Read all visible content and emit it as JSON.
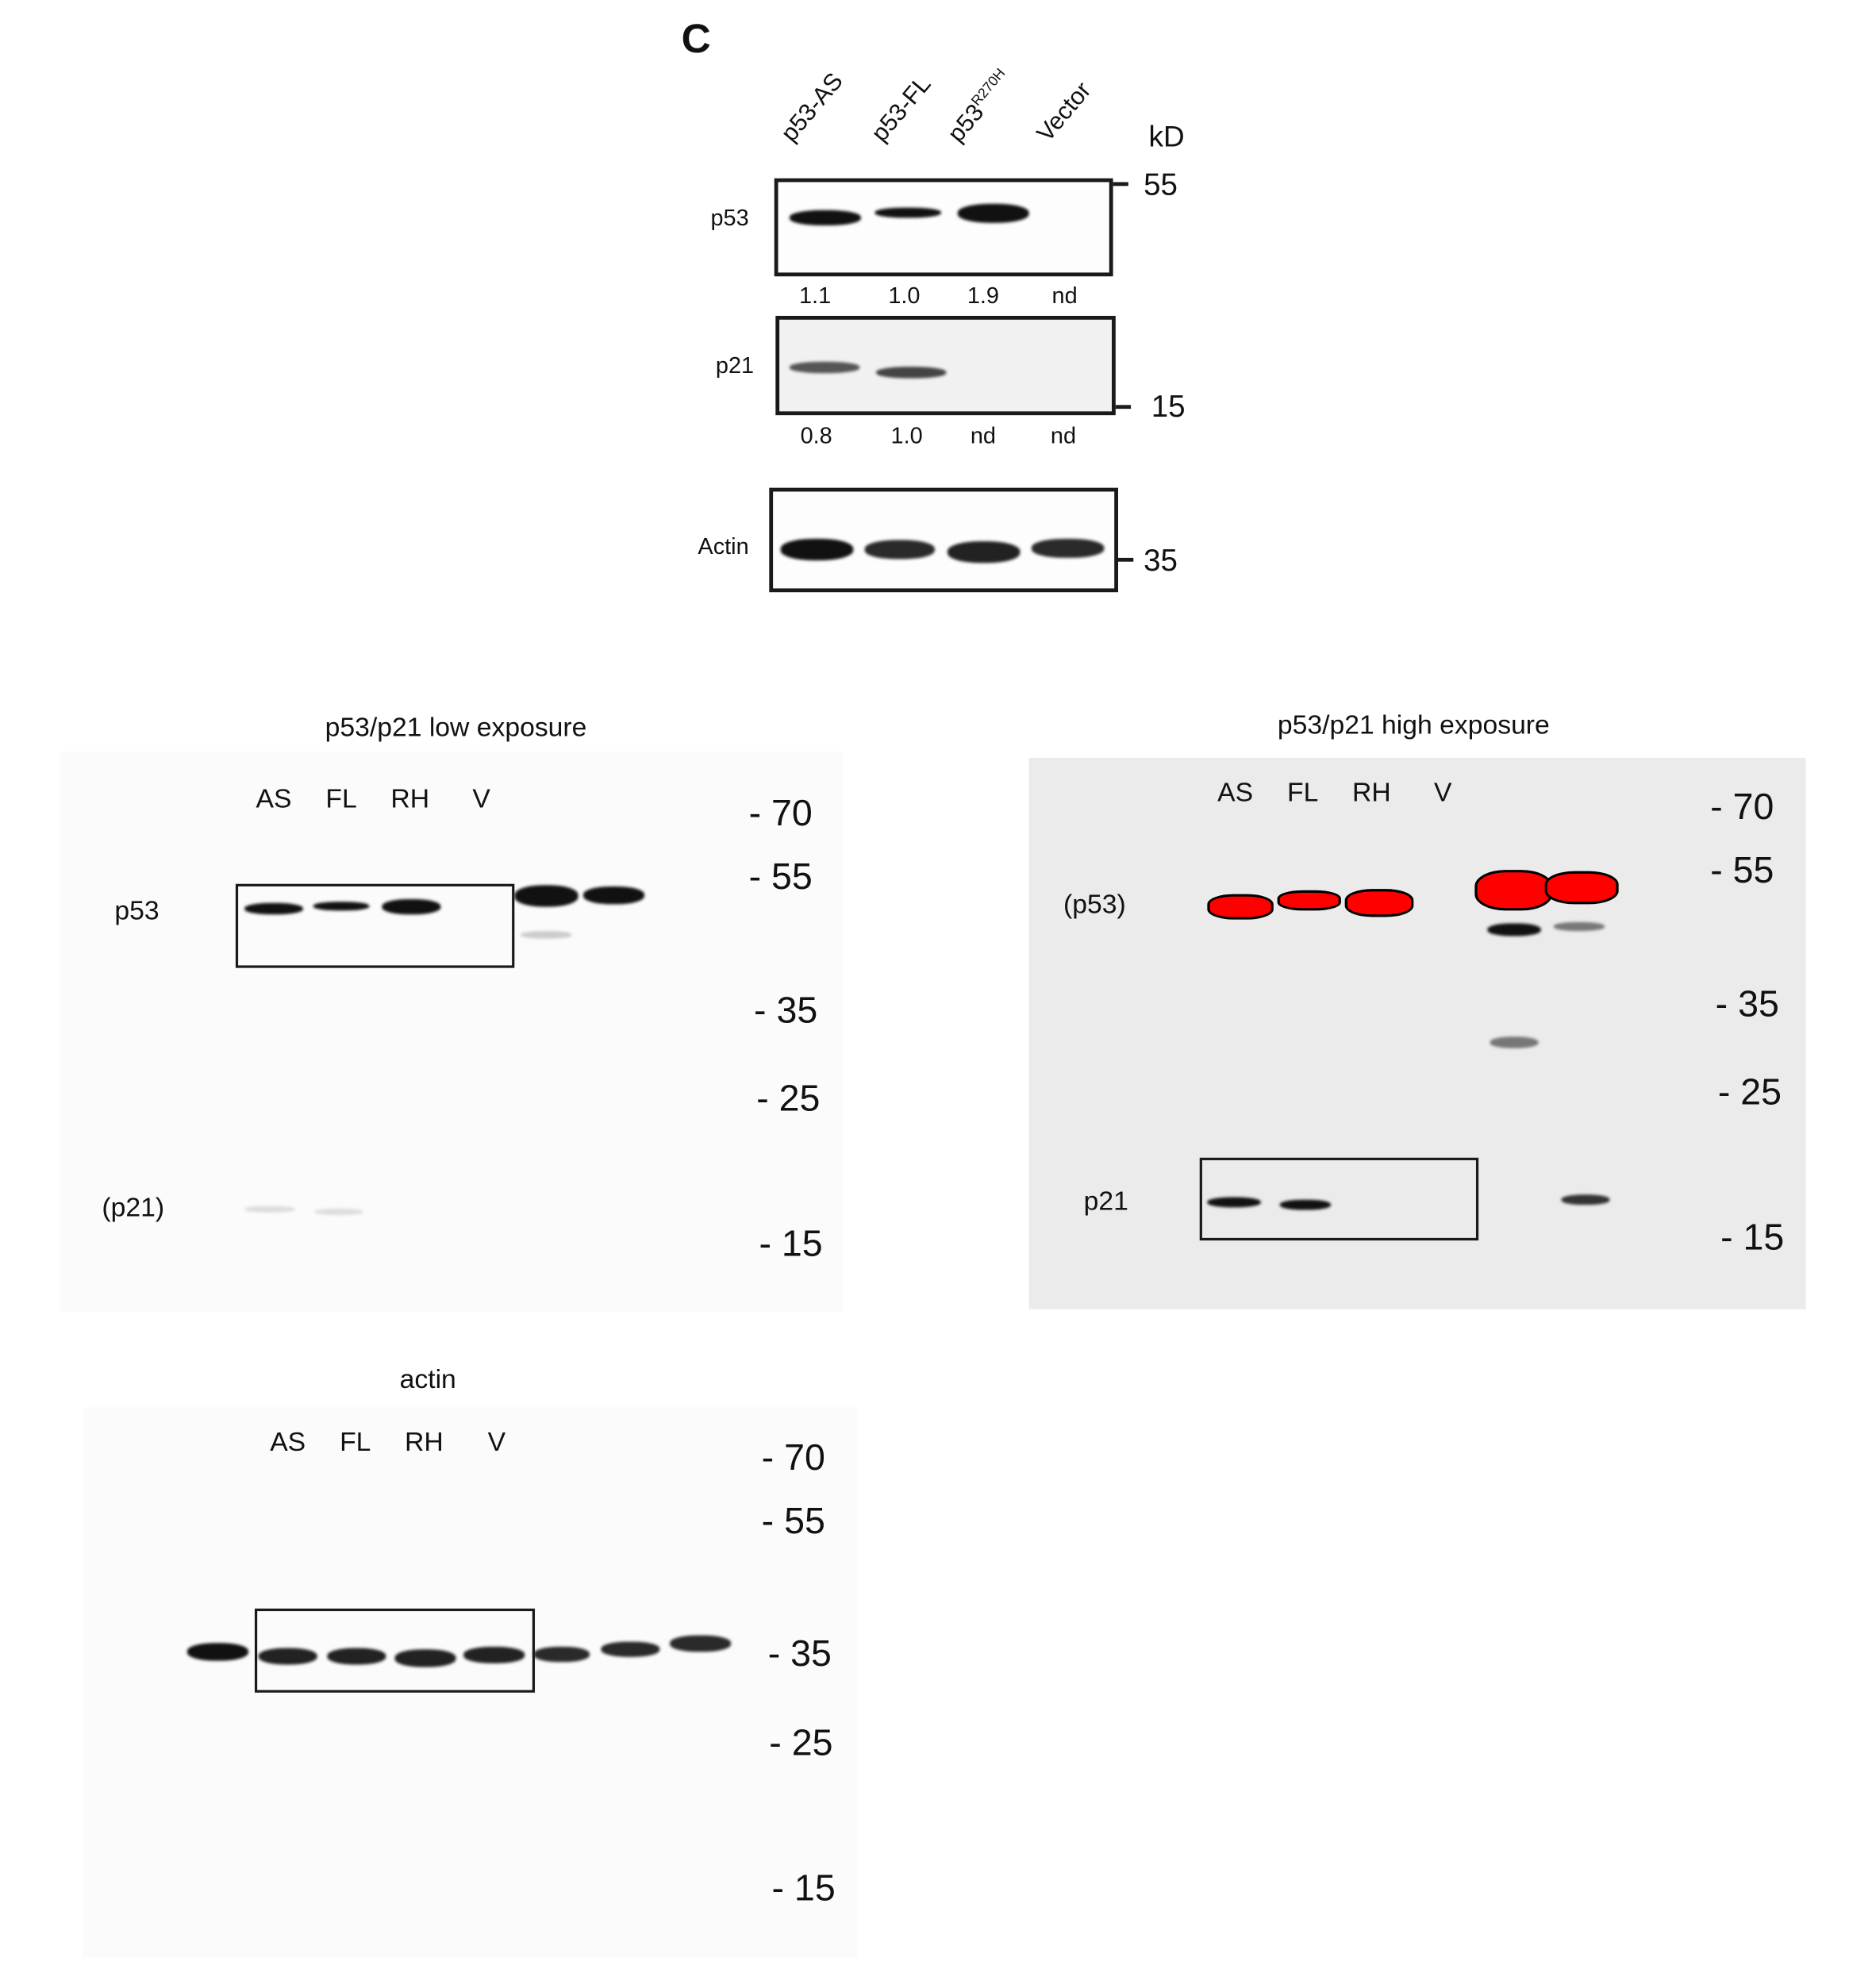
{
  "panel_c": {
    "letter": "C",
    "lanes": [
      "p53-AS",
      "p53-FL",
      "p53",
      "Vector"
    ],
    "lane3_superscript": "R270H",
    "unit": "kD",
    "rows": [
      {
        "label": "p53",
        "marker": "55",
        "values": [
          "1.1",
          "1.0",
          "1.9",
          "nd"
        ]
      },
      {
        "label": "p21",
        "marker": "15",
        "values": [
          "0.8",
          "1.0",
          "nd",
          "nd"
        ]
      },
      {
        "label": "Actin",
        "marker": "35"
      }
    ]
  },
  "low_exposure": {
    "title": "p53/p21 low exposure",
    "lanes": [
      "AS",
      "FL",
      "RH",
      "V"
    ],
    "markers": [
      "- 70",
      "- 55",
      "- 35",
      "- 25",
      "- 15"
    ],
    "labels": {
      "p53": "p53",
      "p21": "(p21)"
    }
  },
  "high_exposure": {
    "title": "p53/p21 high exposure",
    "lanes": [
      "AS",
      "FL",
      "RH",
      "V"
    ],
    "markers": [
      "- 70",
      "- 55",
      "- 35",
      "- 25",
      "- 15"
    ],
    "labels": {
      "p53": "(p53)",
      "p21": "p21"
    },
    "saturation_color": "#ff0000"
  },
  "actin_blot": {
    "title": "actin",
    "lanes": [
      "AS",
      "FL",
      "RH",
      "V"
    ],
    "markers": [
      "- 70",
      "- 55",
      "- 35",
      "- 25",
      "- 15"
    ]
  }
}
